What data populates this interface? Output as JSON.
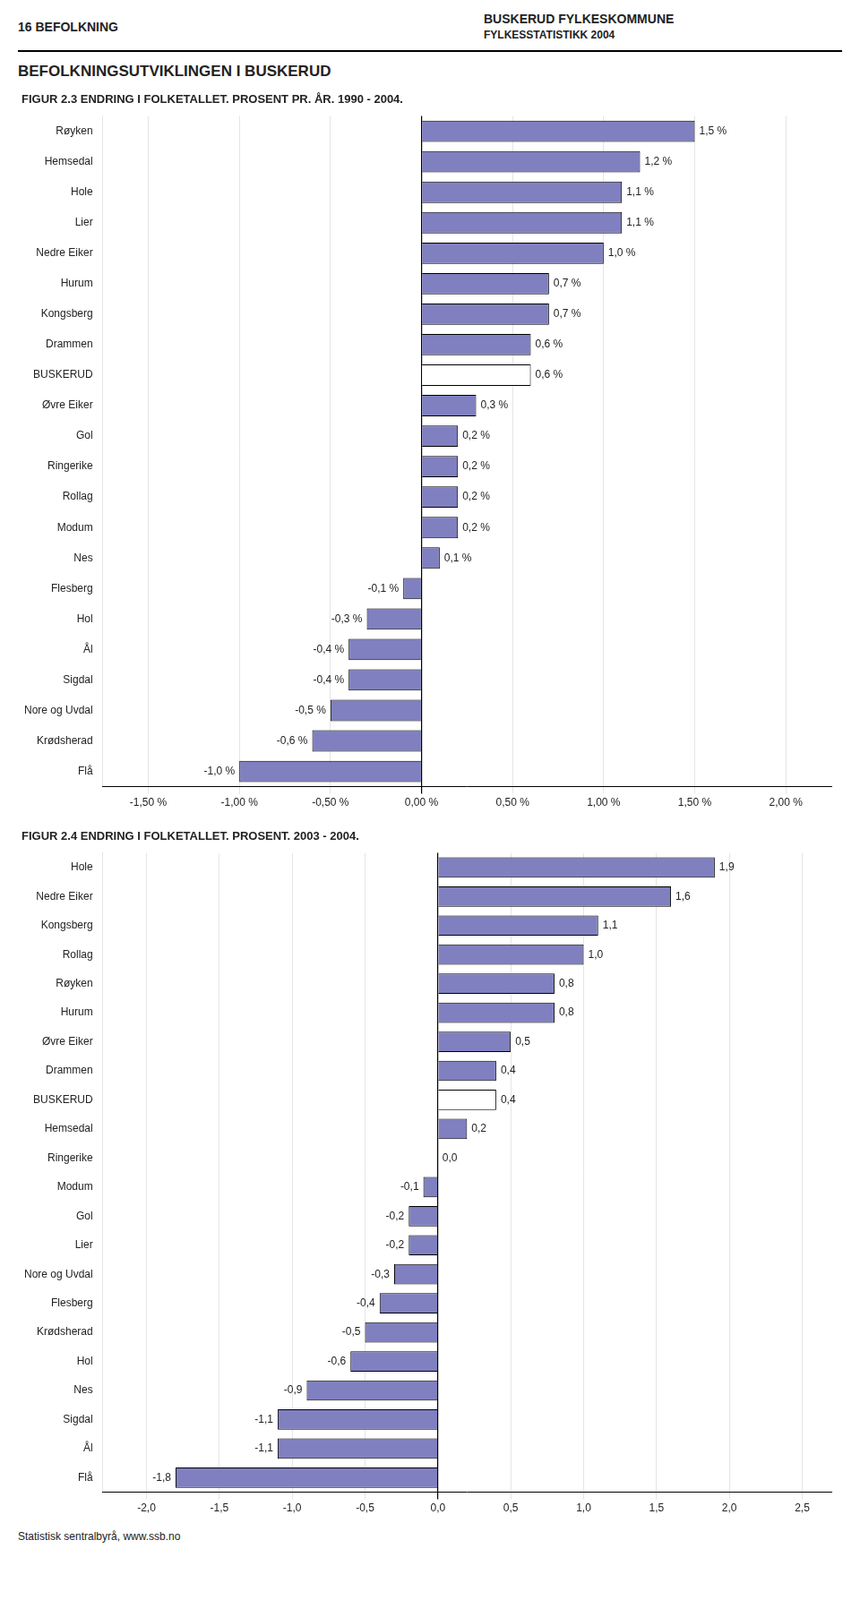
{
  "title": "BEFOLKNINGSUTVIKLINGEN I BUSKERUD",
  "annotations": [
    "16   BEFOLKNING",
    "BUSKERUD FYLKESKOMMUNE",
    "FYLKESSTATISTIKK 2004",
    "Statistisk sentralbyrå,   www.ssb.no"
  ],
  "chart_data": [
    {
      "type": "bar",
      "orientation": "horizontal",
      "title": "FIGUR 2.3 ENDRING I FOLKETALLET. PROSENT PR. ÅR. 1990 - 2004.",
      "categories": [
        "Røyken",
        "Hemsedal",
        "Hole",
        "Lier",
        "Nedre Eiker",
        "Hurum",
        "Kongsberg",
        "Drammen",
        "BUSKERUD",
        "Øvre Eiker",
        "Gol",
        "Ringerike",
        "Rollag",
        "Modum",
        "Nes",
        "Flesberg",
        "Hol",
        "Ål",
        "Sigdal",
        "Nore og Uvdal",
        "Krødsherad",
        "Flå"
      ],
      "values": [
        1.5,
        1.2,
        1.1,
        1.1,
        1.0,
        0.7,
        0.7,
        0.6,
        0.6,
        0.3,
        0.2,
        0.2,
        0.2,
        0.2,
        0.1,
        -0.1,
        -0.3,
        -0.4,
        -0.4,
        -0.5,
        -0.6,
        -1.0
      ],
      "value_labels": [
        "1,5 %",
        "1,2 %",
        "1,1 %",
        "1,1 %",
        "1,0 %",
        "0,7 %",
        "0,7 %",
        "0,6 %",
        "0,6 %",
        "0,3 %",
        "0,2 %",
        "0,2 %",
        "0,2 %",
        "0,2 %",
        "0,1 %",
        "-0,1 %",
        "-0,3 %",
        "-0,4 %",
        "-0,4 %",
        "-0,5 %",
        "-0,6 %",
        "-1,0 %"
      ],
      "colors": [
        "#8080C0",
        "#8080C0",
        "#8080C0",
        "#8080C0",
        "#8080C0",
        "#8080C0",
        "#8080C0",
        "#8080C0",
        "#FFFFFF",
        "#8080C0",
        "#8080C0",
        "#8080C0",
        "#8080C0",
        "#8080C0",
        "#8080C0",
        "#8080C0",
        "#8080C0",
        "#8080C0",
        "#8080C0",
        "#8080C0",
        "#8080C0",
        "#8080C0"
      ],
      "xlim": [
        -1.75,
        2.25
      ],
      "xticks": [
        {
          "value": -1.5,
          "label": "-1,50 %"
        },
        {
          "value": -1.0,
          "label": "-1,00 %"
        },
        {
          "value": -0.5,
          "label": "-0,50 %"
        },
        {
          "value": 0.0,
          "label": "0,00 %"
        },
        {
          "value": 0.5,
          "label": "0,50 %"
        },
        {
          "value": 1.0,
          "label": "1,00 %"
        },
        {
          "value": 1.5,
          "label": "1,50 %"
        },
        {
          "value": 2.0,
          "label": "2,00 %"
        }
      ],
      "grid": true,
      "data_labels": true
    },
    {
      "type": "bar",
      "orientation": "horizontal",
      "title": "FIGUR 2.4 ENDRING I FOLKETALLET. PROSENT. 2003 - 2004.",
      "categories": [
        "Hole",
        "Nedre Eiker",
        "Kongsberg",
        "Rollag",
        "Røyken",
        "Hurum",
        "Øvre Eiker",
        "Drammen",
        "BUSKERUD",
        "Hemsedal",
        "Ringerike",
        "Modum",
        "Gol",
        "Lier",
        "Nore og Uvdal",
        "Flesberg",
        "Krødsherad",
        "Hol",
        "Nes",
        "Sigdal",
        "Ål",
        "Flå"
      ],
      "values": [
        1.9,
        1.6,
        1.1,
        1.0,
        0.8,
        0.8,
        0.5,
        0.4,
        0.4,
        0.2,
        0.0,
        -0.1,
        -0.2,
        -0.2,
        -0.3,
        -0.4,
        -0.5,
        -0.6,
        -0.9,
        -1.1,
        -1.1,
        -1.8
      ],
      "value_labels": [
        "1,9",
        "1,6",
        "1,1",
        "1,0",
        "0,8",
        "0,8",
        "0,5",
        "0,4",
        "0,4",
        "0,2",
        "0,0",
        "-0,1",
        "-0,2",
        "-0,2",
        "-0,3",
        "-0,4",
        "-0,5",
        "-0,6",
        "-0,9",
        "-1,1",
        "-1,1",
        "-1,8"
      ],
      "colors": [
        "#8080C0",
        "#8080C0",
        "#8080C0",
        "#8080C0",
        "#8080C0",
        "#8080C0",
        "#8080C0",
        "#8080C0",
        "#FFFFFF",
        "#8080C0",
        "#8080C0",
        "#8080C0",
        "#8080C0",
        "#8080C0",
        "#8080C0",
        "#8080C0",
        "#8080C0",
        "#8080C0",
        "#8080C0",
        "#8080C0",
        "#8080C0",
        "#8080C0"
      ],
      "xlim": [
        -2.3,
        2.7
      ],
      "xticks": [
        {
          "value": -2.0,
          "label": "-2,0"
        },
        {
          "value": -1.5,
          "label": "-1,5"
        },
        {
          "value": -1.0,
          "label": "-1,0"
        },
        {
          "value": -0.5,
          "label": "-0,5"
        },
        {
          "value": 0.0,
          "label": "0,0"
        },
        {
          "value": 0.5,
          "label": "0,5"
        },
        {
          "value": 1.0,
          "label": "1,0"
        },
        {
          "value": 1.5,
          "label": "1,5"
        },
        {
          "value": 2.0,
          "label": "2,0"
        },
        {
          "value": 2.5,
          "label": "2,5"
        }
      ],
      "grid": true,
      "data_labels": true
    }
  ]
}
